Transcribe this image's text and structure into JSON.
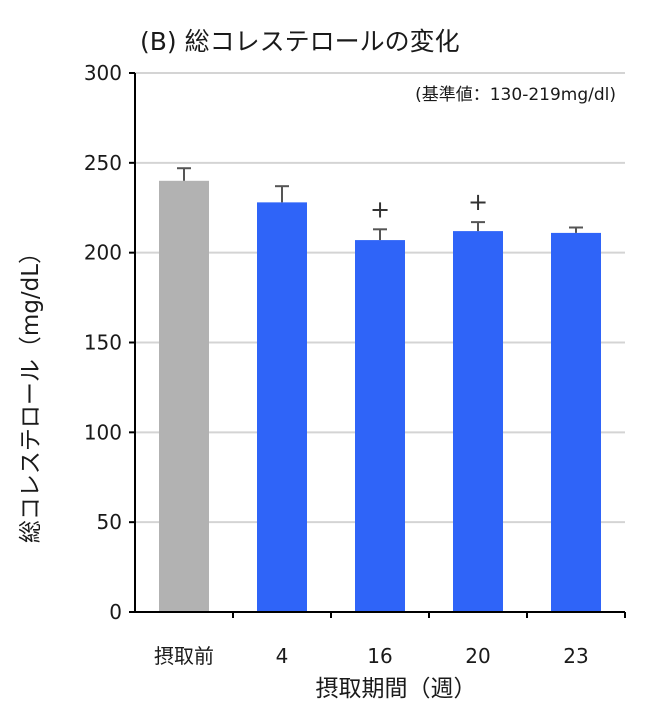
{
  "chart_data": {
    "type": "bar",
    "title": "(B) 総コレステロールの変化",
    "annotation": "(基準値：130-219mg/dl)",
    "xlabel": "摂取期間（週）",
    "ylabel": "総コレステロール（mg/dL）",
    "ylim": [
      0,
      300
    ],
    "yticks": [
      "0",
      "50",
      "100",
      "150",
      "200",
      "250",
      "300"
    ],
    "categories": [
      "摂取前",
      "4",
      "16",
      "20",
      "23"
    ],
    "values": [
      240,
      228,
      207,
      212,
      211
    ],
    "errors": [
      7,
      9,
      6,
      5,
      3
    ],
    "significance": [
      "",
      "",
      "+",
      "+",
      ""
    ],
    "bar_colors": [
      "#b2b2b2",
      "#2f64f8",
      "#2f64f8",
      "#2f64f8",
      "#2f64f8"
    ],
    "error_color": "#555555",
    "grid": true
  }
}
